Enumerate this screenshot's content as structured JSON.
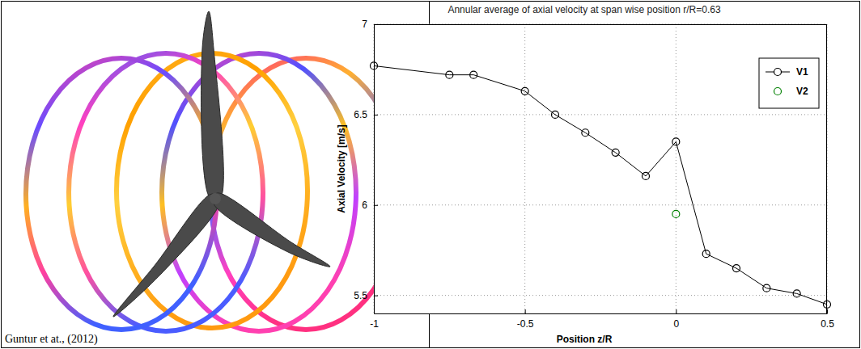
{
  "chart_data": {
    "type": "line",
    "title": "Annular average of axial velocity at span wise position r/R=0.63",
    "x_label": "Position z/R",
    "y_label": "Axial Velocity [m/s]",
    "series": [
      {
        "name": "V1",
        "color": "#000000",
        "marker": "circle",
        "line_style": "solid",
        "x": [
          -1,
          -0.75,
          -0.67,
          -0.5,
          -0.4,
          -0.3,
          -0.2,
          -0.1,
          0,
          0.1,
          0.2,
          0.3,
          0.4,
          0.5
        ],
        "values": [
          6.77,
          6.72,
          6.72,
          6.63,
          6.5,
          6.4,
          6.29,
          6.16,
          6.35,
          5.73,
          5.65,
          5.54,
          5.51,
          5.45
        ]
      },
      {
        "name": "V2",
        "color": "#008000",
        "marker": "circle",
        "line_style": "none",
        "x": [
          0
        ],
        "values": [
          5.95
        ]
      }
    ],
    "xlim": [
      -1,
      0.5
    ],
    "xticks": [
      -1,
      -0.5,
      0,
      0.5
    ],
    "ylim": [
      5.4,
      7
    ],
    "yticks": [
      5.5,
      6,
      6.5,
      7
    ],
    "grid": true,
    "legend": "upper-right"
  },
  "illustration": {
    "caption": "Guntur et at., (2012)"
  }
}
